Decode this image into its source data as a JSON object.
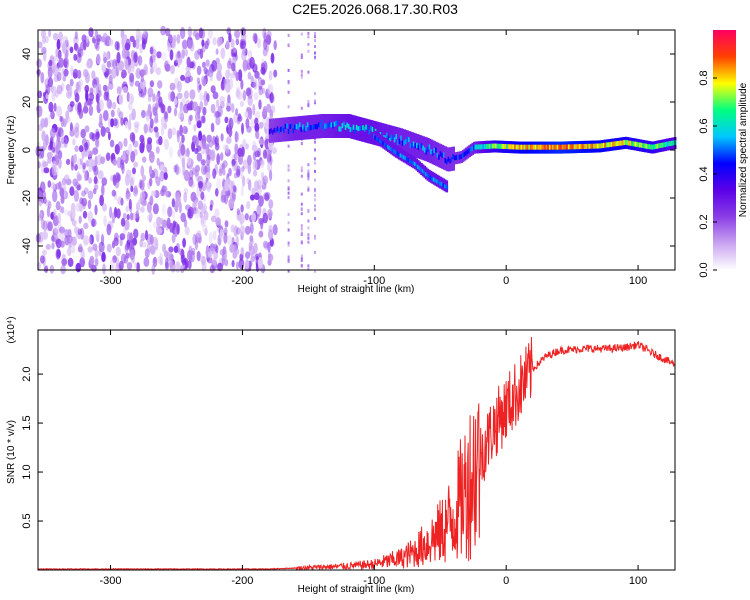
{
  "figure": {
    "title": "C2E5.2026.068.17.30.R03"
  },
  "chart_data": [
    {
      "type": "heatmap",
      "xlabel": "Height of straight line (km)",
      "ylabel": "Frequency (Hz)",
      "xlim": [
        -355,
        128
      ],
      "ylim": [
        -50,
        50
      ],
      "xticks": [
        -300,
        -200,
        -100,
        0,
        100
      ],
      "yticks": [
        -40,
        -20,
        0,
        20,
        40
      ],
      "colorbar": {
        "label": "Normalized spectral amplitude",
        "range": [
          0,
          1
        ],
        "ticks": [
          0.0,
          0.2,
          0.4,
          0.6,
          0.8
        ],
        "colormap": [
          "#ffffff",
          "#c9a4f0",
          "#8a3de6",
          "#5b00e8",
          "#0000ff",
          "#00c8ff",
          "#00ff80",
          "#ffff00",
          "#ff4000",
          "#ff0060"
        ]
      },
      "noise_region": {
        "x": [
          -355,
          -175
        ],
        "y": [
          -50,
          50
        ],
        "amplitude": 0.15
      },
      "sparse_columns": [
        -165,
        -155,
        -150,
        -145
      ],
      "signal_ridge": [
        {
          "x": -180,
          "y": 8,
          "amplitude": 0.4
        },
        {
          "x": -160,
          "y": 9,
          "amplitude": 0.5
        },
        {
          "x": -140,
          "y": 10,
          "amplitude": 0.5
        },
        {
          "x": -120,
          "y": 10,
          "amplitude": 0.55
        },
        {
          "x": -100,
          "y": 7,
          "amplitude": 0.55
        },
        {
          "x": -80,
          "y": 4,
          "amplitude": 0.5
        },
        {
          "x": -60,
          "y": 0,
          "amplitude": 0.5
        },
        {
          "x": -45,
          "y": -4,
          "amplitude": 0.45
        },
        {
          "x": -35,
          "y": -3,
          "amplitude": 0.45
        },
        {
          "x": -25,
          "y": 1,
          "amplitude": 0.5
        },
        {
          "x": -10,
          "y": 1.5,
          "amplitude": 0.7
        },
        {
          "x": 10,
          "y": 1,
          "amplitude": 0.8
        },
        {
          "x": 40,
          "y": 1,
          "amplitude": 0.85
        },
        {
          "x": 70,
          "y": 1.5,
          "amplitude": 0.8
        },
        {
          "x": 90,
          "y": 3,
          "amplitude": 0.75
        },
        {
          "x": 110,
          "y": 1,
          "amplitude": 0.7
        },
        {
          "x": 128,
          "y": 3,
          "amplitude": 0.6
        }
      ],
      "signal_branch": [
        {
          "x": -100,
          "y": 5
        },
        {
          "x": -85,
          "y": -1
        },
        {
          "x": -70,
          "y": -6
        },
        {
          "x": -60,
          "y": -11
        },
        {
          "x": -45,
          "y": -16
        }
      ]
    },
    {
      "type": "line",
      "xlabel": "Height of straight line (km)",
      "ylabel": "SNR (10 * v/v)",
      "scale_label": "(x10⁴)",
      "xlim": [
        -355,
        128
      ],
      "ylim": [
        0,
        2.45
      ],
      "xticks": [
        -300,
        -200,
        -100,
        0,
        100
      ],
      "yticks": [
        0.5,
        1.0,
        1.5,
        2.0
      ],
      "color": "#ee2222",
      "series": [
        {
          "x": [
            -355,
            -300,
            -250,
            -200,
            -180,
            -160,
            -140,
            -120,
            -100,
            -90,
            -80,
            -70,
            -60,
            -50,
            -40,
            -30,
            -20,
            -10,
            0,
            10,
            20,
            30,
            40,
            50,
            60,
            70,
            80,
            90,
            100,
            110,
            120,
            128
          ],
          "values": [
            0.01,
            0.01,
            0.01,
            0.01,
            0.01,
            0.02,
            0.03,
            0.04,
            0.06,
            0.09,
            0.12,
            0.18,
            0.28,
            0.38,
            0.55,
            0.85,
            1.15,
            1.45,
            1.65,
            1.85,
            2.05,
            2.18,
            2.24,
            2.25,
            2.26,
            2.26,
            2.26,
            2.27,
            2.3,
            2.22,
            2.15,
            2.1
          ]
        }
      ]
    }
  ]
}
